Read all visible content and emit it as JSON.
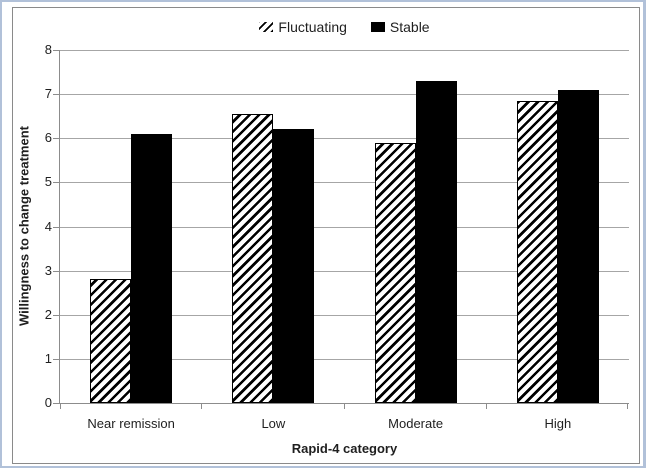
{
  "colors": {
    "bar_fill": "#000000",
    "gridline": "#a6a6a6",
    "axis": "#8c8c8c",
    "text": "#1f1f1f",
    "outer_border": "#b1c1d9",
    "frame_border": "#8a8a8a"
  },
  "legend": {
    "items": [
      {
        "label": "Fluctuating",
        "swatch": "hatched"
      },
      {
        "label": "Stable",
        "swatch": "solid"
      }
    ]
  },
  "chart_data": {
    "type": "bar",
    "title": "",
    "categories": [
      "Near remission",
      "Low",
      "Moderate",
      "High"
    ],
    "series": [
      {
        "name": "Fluctuating",
        "style": "hatched",
        "values": [
          2.8,
          6.55,
          5.9,
          6.85
        ]
      },
      {
        "name": "Stable",
        "style": "solid",
        "values": [
          6.1,
          6.2,
          7.3,
          7.1
        ]
      }
    ],
    "xlabel": "Rapid-4 category",
    "ylabel": "Willingness to change treatment",
    "ylim": [
      0,
      8
    ],
    "yticks": [
      0,
      1,
      2,
      3,
      4,
      5,
      6,
      7,
      8
    ],
    "grid": "horizontal",
    "legend_position": "top-center"
  }
}
